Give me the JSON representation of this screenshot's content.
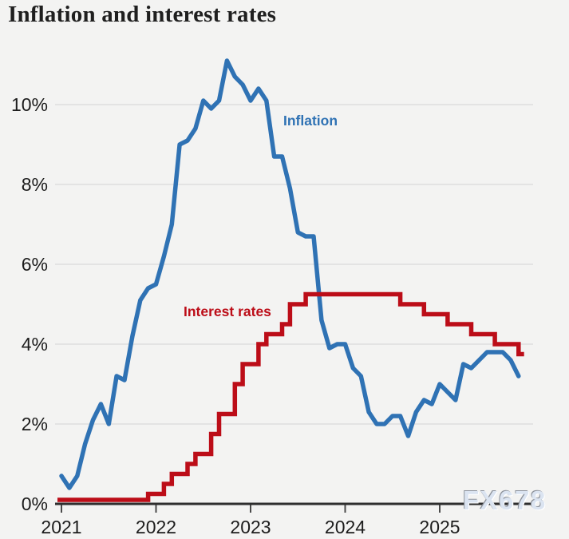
{
  "watermark": {
    "text": "FX678"
  },
  "colors": {
    "background": "#f3f3f2",
    "gridline": "#dedede",
    "axis_line": "#2e2e2e",
    "tick_mark": "#4a4a4a",
    "tick_text": "#1c1c1c",
    "title_text": "#1f1f1f",
    "inflation_line": "#2f72b4",
    "interest_line": "#bc0d18",
    "watermark_text": "#dbe4f1"
  },
  "chart_data": {
    "type": "line",
    "title": "Inflation and interest rates",
    "xlabel": "",
    "ylabel": "",
    "x_tick_labels": [
      "2021",
      "2022",
      "2023",
      "2024",
      "2025"
    ],
    "y_ticks": [
      0,
      2,
      4,
      6,
      8,
      10
    ],
    "y_tick_labels": [
      "0%",
      "2%",
      "4%",
      "6%",
      "8%",
      "10%"
    ],
    "ylim": [
      0,
      11.6
    ],
    "grid": "horizontal",
    "legend_position": "inline-labels",
    "series": [
      {
        "name": "Inflation",
        "label_text": "Inflation",
        "color": "#2f72b4",
        "kind": "monthly",
        "start": "2021-01",
        "values": [
          0.7,
          0.4,
          0.7,
          1.5,
          2.1,
          2.5,
          2.0,
          3.2,
          3.1,
          4.2,
          5.1,
          5.4,
          5.5,
          6.2,
          7.0,
          9.0,
          9.1,
          9.4,
          10.1,
          9.9,
          10.1,
          11.1,
          10.7,
          10.5,
          10.1,
          10.4,
          10.1,
          8.7,
          8.7,
          7.9,
          6.8,
          6.7,
          6.7,
          4.6,
          3.9,
          4.0,
          4.0,
          3.4,
          3.2,
          2.3,
          2.0,
          2.0,
          2.2,
          2.2,
          1.7,
          2.3,
          2.6,
          2.5,
          3.0,
          2.8,
          2.6,
          3.5,
          3.4,
          3.6,
          3.8,
          3.8,
          3.8,
          3.6,
          3.2
        ]
      },
      {
        "name": "Interest rates",
        "label_text": "Interest rates",
        "color": "#bc0d18",
        "kind": "step",
        "steps": [
          [
            "2021-01",
            0.1
          ],
          [
            "2021-12",
            0.25
          ],
          [
            "2022-02",
            0.5
          ],
          [
            "2022-03",
            0.75
          ],
          [
            "2022-05",
            1.0
          ],
          [
            "2022-06",
            1.25
          ],
          [
            "2022-08",
            1.75
          ],
          [
            "2022-09",
            2.25
          ],
          [
            "2022-11",
            3.0
          ],
          [
            "2022-12",
            3.5
          ],
          [
            "2023-02",
            4.0
          ],
          [
            "2023-03",
            4.25
          ],
          [
            "2023-05",
            4.5
          ],
          [
            "2023-06",
            5.0
          ],
          [
            "2023-08",
            5.25
          ],
          [
            "2024-08",
            5.0
          ],
          [
            "2024-11",
            4.75
          ],
          [
            "2025-02",
            4.5
          ],
          [
            "2025-05",
            4.25
          ],
          [
            "2025-08",
            4.0
          ],
          [
            "2025-11",
            3.75
          ]
        ],
        "end": "2025-12"
      }
    ]
  }
}
